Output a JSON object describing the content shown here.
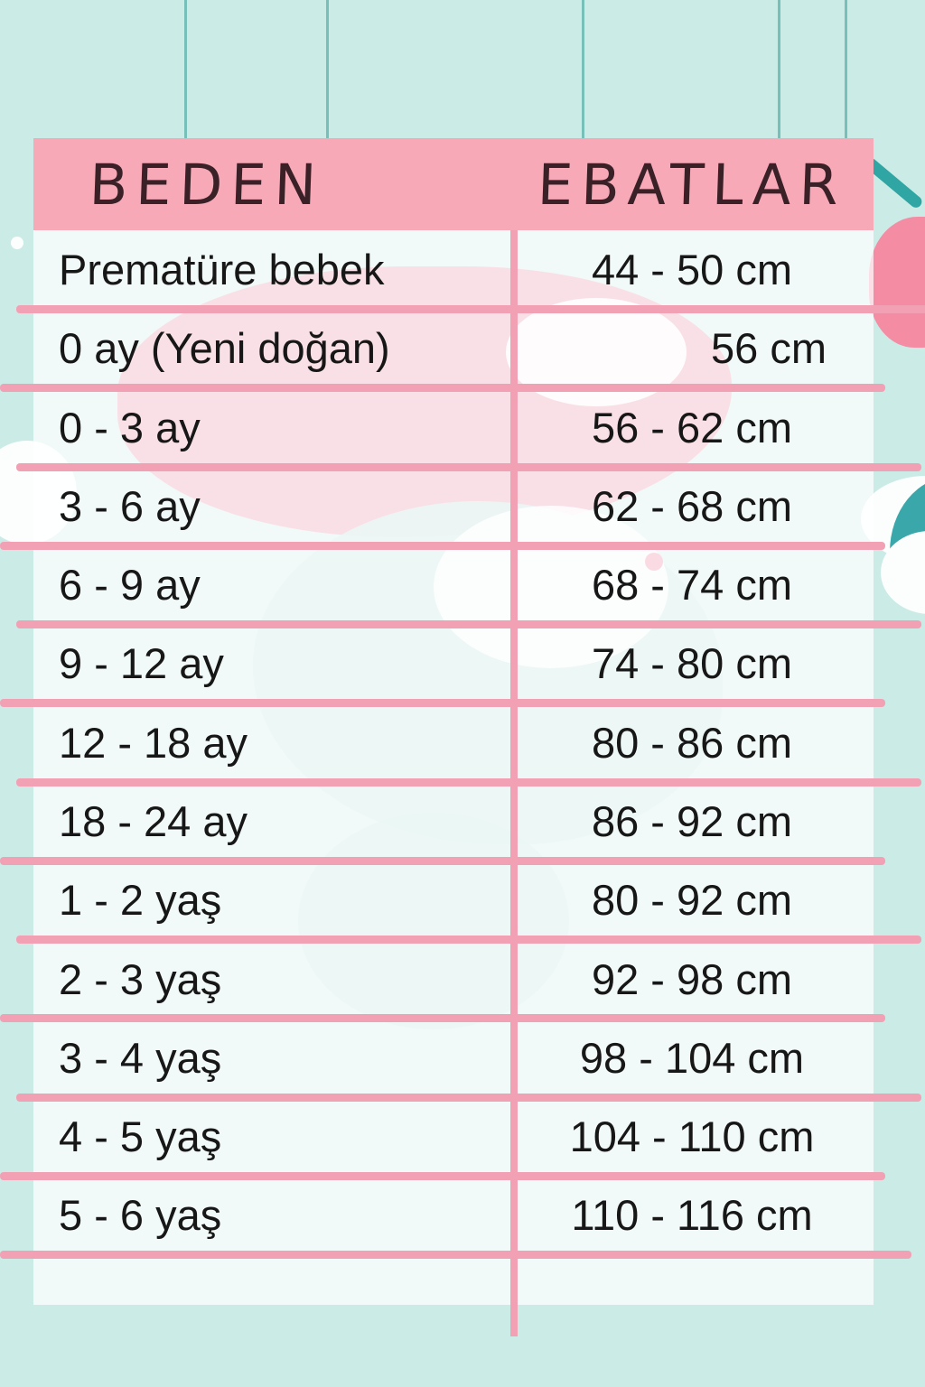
{
  "colors": {
    "bg": "#cbebe6",
    "header_bg": "#f8a9b8",
    "divider": "#f2a1b5",
    "text": "#171717",
    "header_text": "#3a2127",
    "string_teal": "#69b8b1",
    "deco_teal": "#2fa6a3",
    "deco_teal_light": "#b7e1db",
    "deco_pink": "#ef7f9a",
    "cloud_white": "#fbfefd"
  },
  "chart_data": {
    "type": "table",
    "title": "",
    "columns": [
      "BEDEN",
      "EBATLAR"
    ],
    "rows": [
      {
        "beden": "Prematüre bebek",
        "ebat": "44 - 50 cm",
        "align": "center"
      },
      {
        "beden": "0 ay (Yeni doğan)",
        "ebat": "56 cm",
        "align": "right"
      },
      {
        "beden": "0 - 3 ay",
        "ebat": "56 - 62 cm",
        "align": "center"
      },
      {
        "beden": "3 - 6 ay",
        "ebat": "62 - 68 cm",
        "align": "center"
      },
      {
        "beden": "6 - 9 ay",
        "ebat": "68 - 74 cm",
        "align": "center"
      },
      {
        "beden": "9 - 12 ay",
        "ebat": "74 - 80 cm",
        "align": "center"
      },
      {
        "beden": "12 - 18 ay",
        "ebat": "80 - 86 cm",
        "align": "center"
      },
      {
        "beden": "18 - 24 ay",
        "ebat": "86 - 92 cm",
        "align": "center"
      },
      {
        "beden": "1 - 2 yaş",
        "ebat": "80 - 92 cm",
        "align": "center"
      },
      {
        "beden": "2 - 3 yaş",
        "ebat": "92 - 98 cm",
        "align": "center"
      },
      {
        "beden": "3 - 4 yaş",
        "ebat": "98 - 104 cm",
        "align": "center"
      },
      {
        "beden": "4 - 5 yaş",
        "ebat": "104 - 110 cm",
        "align": "center"
      },
      {
        "beden": "5 - 6 yaş",
        "ebat": "110 - 116 cm",
        "align": "center"
      }
    ]
  }
}
